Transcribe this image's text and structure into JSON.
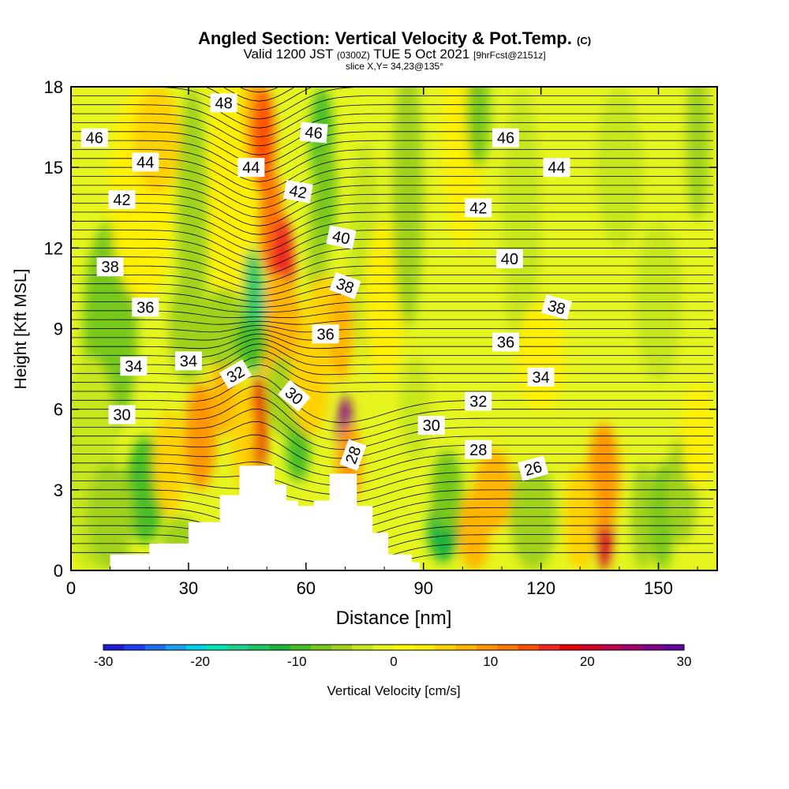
{
  "header": {
    "title": "Angled Section: Vertical Velocity & Pot.Temp.",
    "title_mark": "(C)",
    "valid_prefix": "Valid 1200 JST",
    "valid_utc": "(0300Z)",
    "valid_date": "TUE 5 Oct 2021",
    "valid_fcst": "[9hrFcst@2151z]",
    "slice": "slice X,Y= 34,23@135°"
  },
  "chart_data": {
    "type": "heatmap",
    "xlabel": "Distance [nm]",
    "ylabel": "Height [Kft MSL]",
    "xlim": [
      0,
      165
    ],
    "ylim": [
      0,
      18
    ],
    "x_ticks": [
      0,
      30,
      60,
      90,
      120,
      150
    ],
    "y_ticks": [
      0,
      3,
      6,
      9,
      12,
      15,
      18
    ],
    "colorbar": {
      "label": "Vertical Velocity [cm/s]",
      "min": -30,
      "max": 30,
      "ticks": [
        -30,
        -20,
        -10,
        0,
        10,
        20,
        30
      ],
      "colors": [
        "#1e1ed2",
        "#1e3cf0",
        "#1e6ef0",
        "#1ea0f0",
        "#00d2e6",
        "#00e6b4",
        "#1ed28c",
        "#1ec864",
        "#1eb43c",
        "#46be28",
        "#78c81e",
        "#a0d21e",
        "#c8e61e",
        "#e6f51e",
        "#ffff00",
        "#fff000",
        "#ffd200",
        "#ffb400",
        "#ff9600",
        "#ff7800",
        "#ff5000",
        "#f0281e",
        "#e60000",
        "#d20028",
        "#be0050",
        "#a0006e",
        "#82008c",
        "#6400a0"
      ]
    },
    "terrain_profile": [
      [
        0,
        0
      ],
      [
        10,
        0.6
      ],
      [
        20,
        1
      ],
      [
        30,
        1.8
      ],
      [
        38,
        2.8
      ],
      [
        43,
        3.9
      ],
      [
        50,
        3.9
      ],
      [
        52,
        3.2
      ],
      [
        55,
        2.6
      ],
      [
        58,
        2.4
      ],
      [
        62,
        2.6
      ],
      [
        66,
        3.6
      ],
      [
        70,
        3.6
      ],
      [
        73,
        2.4
      ],
      [
        77,
        1.4
      ],
      [
        81,
        0.6
      ],
      [
        87,
        0.3
      ],
      [
        89,
        0
      ],
      [
        165,
        0
      ]
    ],
    "theta_contours_K": [
      26,
      28,
      30,
      32,
      34,
      36,
      38,
      40,
      42,
      44,
      46,
      48
    ],
    "contour_labels": [
      {
        "text": "48",
        "x": 39,
        "y": 17.4,
        "rot": 0
      },
      {
        "text": "46",
        "x": 6,
        "y": 16.1,
        "rot": 0
      },
      {
        "text": "46",
        "x": 62,
        "y": 16.3,
        "rot": 5
      },
      {
        "text": "46",
        "x": 111,
        "y": 16.1,
        "rot": 0
      },
      {
        "text": "44",
        "x": 19,
        "y": 15.2,
        "rot": 0
      },
      {
        "text": "44",
        "x": 46,
        "y": 15,
        "rot": 0
      },
      {
        "text": "44",
        "x": 124,
        "y": 15,
        "rot": 0
      },
      {
        "text": "42",
        "x": 13,
        "y": 13.8,
        "rot": 0
      },
      {
        "text": "42",
        "x": 58,
        "y": 14.1,
        "rot": 10
      },
      {
        "text": "42",
        "x": 104,
        "y": 13.5,
        "rot": 0
      },
      {
        "text": "40",
        "x": 69,
        "y": 12.4,
        "rot": 12
      },
      {
        "text": "40",
        "x": 112,
        "y": 11.6,
        "rot": 0
      },
      {
        "text": "38",
        "x": 10,
        "y": 11.3,
        "rot": 0
      },
      {
        "text": "38",
        "x": 70,
        "y": 10.6,
        "rot": 20
      },
      {
        "text": "38",
        "x": 124,
        "y": 9.8,
        "rot": 15
      },
      {
        "text": "36",
        "x": 19,
        "y": 9.8,
        "rot": 0
      },
      {
        "text": "36",
        "x": 65,
        "y": 8.8,
        "rot": 0
      },
      {
        "text": "36",
        "x": 111,
        "y": 8.5,
        "rot": 0
      },
      {
        "text": "34",
        "x": 16,
        "y": 7.6,
        "rot": 0
      },
      {
        "text": "34",
        "x": 30,
        "y": 7.8,
        "rot": 0
      },
      {
        "text": "34",
        "x": 120,
        "y": 7.2,
        "rot": 0
      },
      {
        "text": "32",
        "x": 42,
        "y": 7.3,
        "rot": -30
      },
      {
        "text": "32",
        "x": 104,
        "y": 6.3,
        "rot": 0
      },
      {
        "text": "30",
        "x": 13,
        "y": 5.8,
        "rot": 0
      },
      {
        "text": "30",
        "x": 57,
        "y": 6.5,
        "rot": 40
      },
      {
        "text": "30",
        "x": 92,
        "y": 5.4,
        "rot": 0
      },
      {
        "text": "28",
        "x": 72,
        "y": 4.3,
        "rot": -70
      },
      {
        "text": "28",
        "x": 104,
        "y": 4.5,
        "rot": 0
      },
      {
        "text": "26",
        "x": 118,
        "y": 3.8,
        "rot": -15
      }
    ]
  }
}
